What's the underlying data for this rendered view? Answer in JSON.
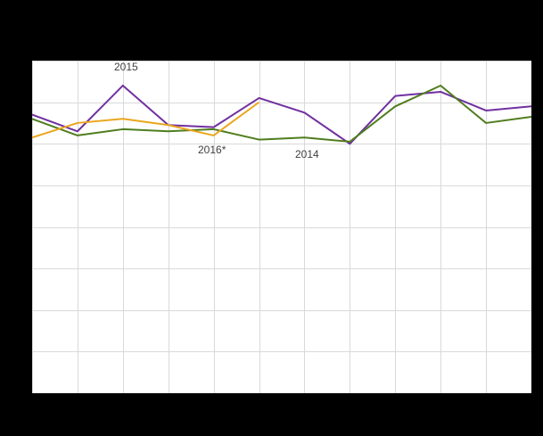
{
  "page": {
    "background": "#000000"
  },
  "chart_data": {
    "type": "line",
    "x": [
      1,
      2,
      3,
      4,
      5,
      6,
      7,
      8,
      9,
      10,
      11,
      12
    ],
    "series": [
      {
        "name": "2015",
        "color": "#7030a0",
        "values": [
          6.7,
          6.3,
          7.4,
          6.45,
          6.4,
          7.1,
          6.75,
          6.0,
          7.15,
          7.25,
          6.8,
          6.9
        ]
      },
      {
        "name": "2014",
        "color": "#507d1e",
        "values": [
          6.6,
          6.2,
          6.35,
          6.3,
          6.35,
          6.1,
          6.15,
          6.05,
          6.9,
          7.4,
          6.5,
          6.65
        ]
      },
      {
        "name": "2016*",
        "color": "#eaa61e",
        "values": [
          6.15,
          6.5,
          6.6,
          6.45,
          6.2,
          7.0
        ]
      }
    ],
    "title": "",
    "xlabel": "",
    "ylabel": "",
    "ylim": [
      0,
      8
    ],
    "y_gridline_step": 1,
    "grid": true,
    "legend_position": "none",
    "plot_background": "#ffffff",
    "grid_color": "#d9d9d9",
    "annotations": [
      {
        "text": "2015",
        "x": 92,
        "y": 0
      },
      {
        "text": "2016*",
        "x": 186,
        "y": 93
      },
      {
        "text": "2014",
        "x": 295,
        "y": 98
      }
    ]
  }
}
